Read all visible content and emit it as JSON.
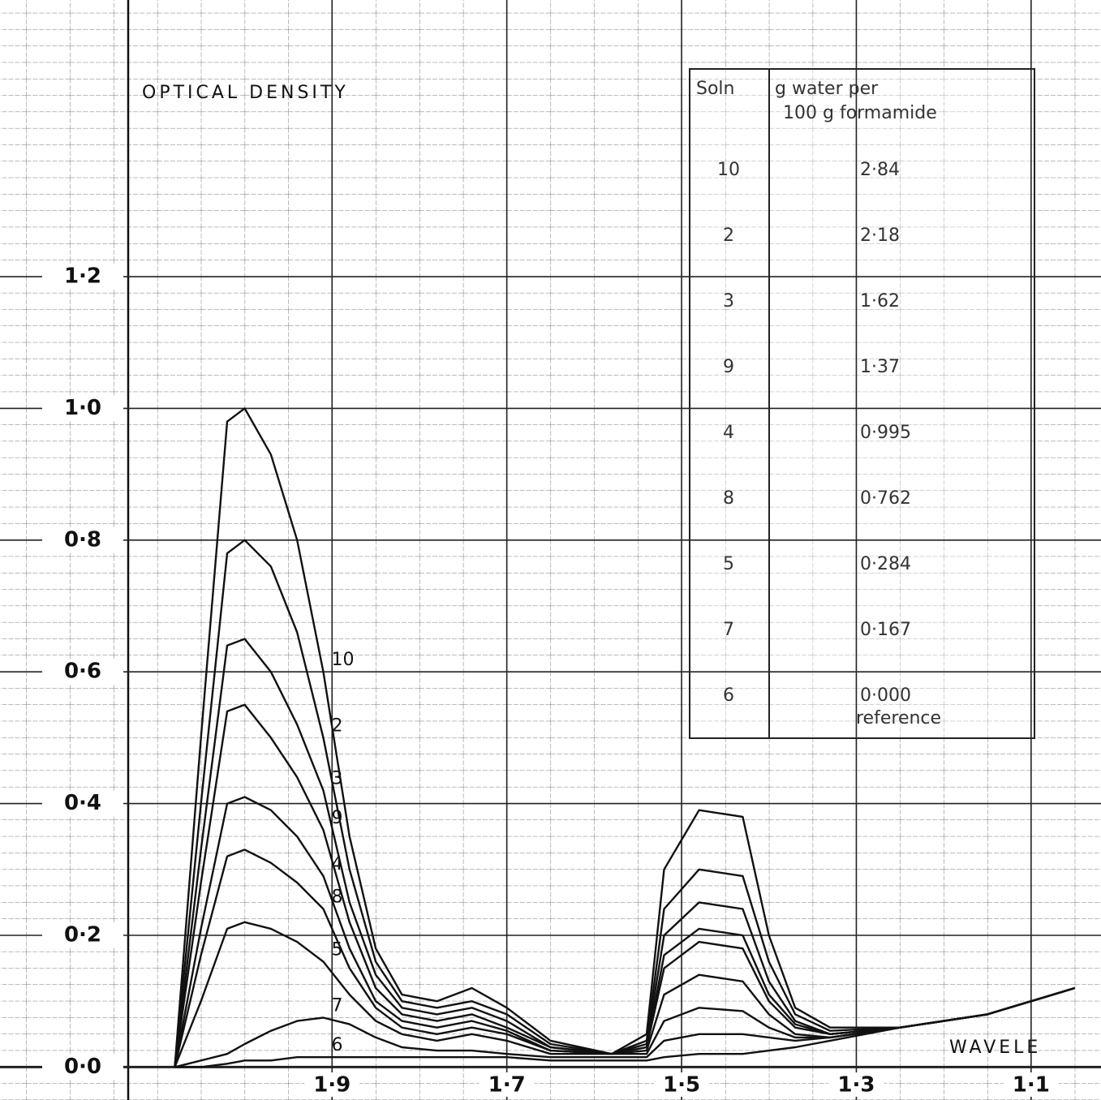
{
  "chart_data": {
    "type": "line",
    "y_label": "OPTICAL DENSITY",
    "x_label": "WAVELE",
    "xlim": [
      2.28,
      1.02
    ],
    "ylim": [
      -0.05,
      1.62
    ],
    "xticks": [
      {
        "value": 1.9,
        "label": "1·9"
      },
      {
        "value": 1.7,
        "label": "1·7"
      },
      {
        "value": 1.5,
        "label": "1·5"
      },
      {
        "value": 1.3,
        "label": "1·3"
      },
      {
        "value": 1.1,
        "label": "1·1"
      }
    ],
    "yticks": [
      {
        "value": 0,
        "label": "0·0"
      },
      {
        "value": 0.2,
        "label": "0·2"
      },
      {
        "value": 0.4,
        "label": "0·4"
      },
      {
        "value": 0.6,
        "label": "0·6"
      },
      {
        "value": 0.8,
        "label": "0·8"
      },
      {
        "value": 1.0,
        "label": "1·0"
      },
      {
        "value": 1.2,
        "label": "1·2"
      }
    ],
    "grid": true,
    "x": [
      2.08,
      2.05,
      2.02,
      2.0,
      1.97,
      1.94,
      1.91,
      1.88,
      1.85,
      1.82,
      1.78,
      1.74,
      1.7,
      1.65,
      1.58,
      1.54,
      1.52,
      1.48,
      1.43,
      1.4,
      1.37,
      1.33,
      1.25,
      1.15,
      1.05
    ],
    "series": [
      {
        "name": "10",
        "color": "#111111",
        "values": [
          0,
          0.5,
          0.98,
          1.0,
          0.93,
          0.8,
          0.6,
          0.35,
          0.18,
          0.11,
          0.1,
          0.12,
          0.09,
          0.04,
          0.02,
          0.05,
          0.3,
          0.39,
          0.38,
          0.2,
          0.09,
          0.06,
          0.06,
          0.08,
          0.12
        ]
      },
      {
        "name": "2",
        "color": "#111111",
        "values": [
          0,
          0.4,
          0.78,
          0.8,
          0.76,
          0.66,
          0.5,
          0.3,
          0.16,
          0.1,
          0.09,
          0.1,
          0.08,
          0.035,
          0.02,
          0.04,
          0.24,
          0.3,
          0.29,
          0.16,
          0.08,
          0.055,
          0.06,
          0.08,
          0.12
        ]
      },
      {
        "name": "3",
        "color": "#111111",
        "values": [
          0,
          0.33,
          0.64,
          0.65,
          0.6,
          0.52,
          0.42,
          0.25,
          0.14,
          0.09,
          0.08,
          0.09,
          0.07,
          0.03,
          0.02,
          0.035,
          0.2,
          0.25,
          0.24,
          0.13,
          0.07,
          0.05,
          0.06,
          0.08,
          0.12
        ]
      },
      {
        "name": "9",
        "color": "#111111",
        "values": [
          0,
          0.28,
          0.54,
          0.55,
          0.5,
          0.44,
          0.36,
          0.22,
          0.12,
          0.08,
          0.07,
          0.08,
          0.06,
          0.03,
          0.02,
          0.03,
          0.17,
          0.21,
          0.2,
          0.11,
          0.065,
          0.05,
          0.06,
          0.08,
          0.12
        ]
      },
      {
        "name": "4",
        "color": "#111111",
        "values": [
          0,
          0.21,
          0.4,
          0.41,
          0.39,
          0.35,
          0.29,
          0.18,
          0.1,
          0.07,
          0.06,
          0.07,
          0.055,
          0.025,
          0.02,
          0.03,
          0.15,
          0.19,
          0.18,
          0.1,
          0.06,
          0.05,
          0.06,
          0.08,
          0.12
        ]
      },
      {
        "name": "8",
        "color": "#111111",
        "values": [
          0,
          0.17,
          0.32,
          0.33,
          0.31,
          0.28,
          0.24,
          0.15,
          0.09,
          0.06,
          0.05,
          0.06,
          0.05,
          0.025,
          0.02,
          0.025,
          0.11,
          0.14,
          0.13,
          0.08,
          0.05,
          0.045,
          0.06,
          0.08,
          0.12
        ]
      },
      {
        "name": "5",
        "color": "#111111",
        "values": [
          0,
          0.1,
          0.21,
          0.22,
          0.21,
          0.19,
          0.16,
          0.11,
          0.07,
          0.05,
          0.04,
          0.05,
          0.04,
          0.02,
          0.02,
          0.02,
          0.07,
          0.09,
          0.085,
          0.06,
          0.045,
          0.045,
          0.06,
          0.08,
          0.12
        ]
      },
      {
        "name": "7",
        "color": "#111111",
        "values": [
          0,
          0.01,
          0.02,
          0.035,
          0.055,
          0.07,
          0.075,
          0.065,
          0.045,
          0.03,
          0.025,
          0.025,
          0.02,
          0.015,
          0.015,
          0.015,
          0.04,
          0.05,
          0.05,
          0.045,
          0.04,
          0.045,
          0.06,
          0.08,
          0.12
        ]
      },
      {
        "name": "6",
        "color": "#111111",
        "values": [
          0,
          0,
          0.005,
          0.01,
          0.01,
          0.015,
          0.015,
          0.015,
          0.015,
          0.015,
          0.015,
          0.015,
          0.015,
          0.01,
          0.01,
          0.01,
          0.015,
          0.02,
          0.02,
          0.025,
          0.03,
          0.04,
          0.06,
          0.08,
          0.12
        ]
      }
    ],
    "table": {
      "columns": [
        "Soln",
        "g water per",
        "100 g formamide"
      ],
      "rows": [
        [
          "10",
          "2·84"
        ],
        [
          "2",
          "2·18"
        ],
        [
          "3",
          "1·62"
        ],
        [
          "9",
          "1·37"
        ],
        [
          "4",
          "0·995"
        ],
        [
          "8",
          "0·762"
        ],
        [
          "5",
          "0·284"
        ],
        [
          "7",
          "0·167"
        ],
        [
          "6",
          "0·000",
          "reference"
        ]
      ]
    }
  }
}
